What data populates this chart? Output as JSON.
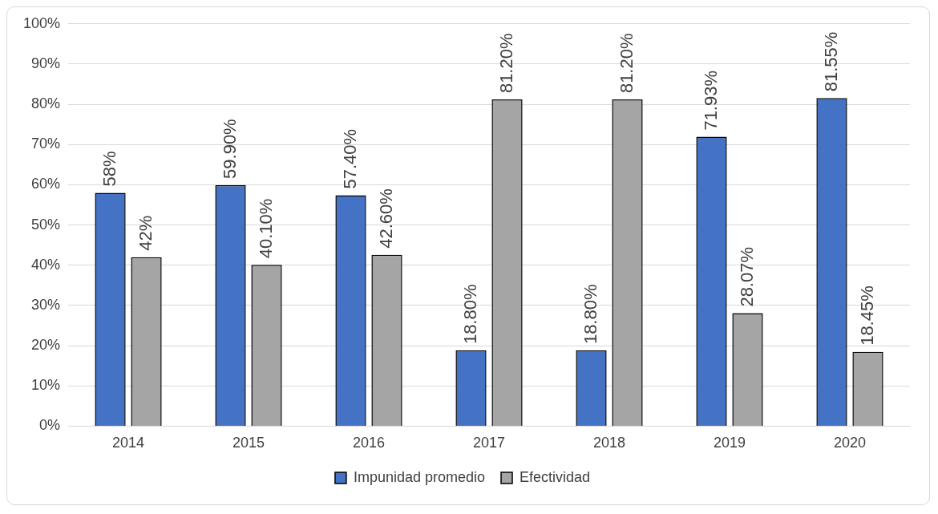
{
  "chart_data": {
    "type": "bar",
    "categories": [
      "2014",
      "2015",
      "2016",
      "2017",
      "2018",
      "2019",
      "2020"
    ],
    "series": [
      {
        "name": "Impunidad promedio",
        "color": "#4472c4",
        "values": [
          58,
          59.9,
          57.4,
          18.8,
          18.8,
          71.93,
          81.55
        ],
        "value_labels": [
          "58%",
          "59.90%",
          "57.40%",
          "18.80%",
          "18.80%",
          "71.93%",
          "81.55%"
        ]
      },
      {
        "name": "Efectividad",
        "color": "#a5a5a5",
        "values": [
          42,
          40.1,
          42.6,
          81.2,
          81.2,
          28.07,
          18.45
        ],
        "value_labels": [
          "42%",
          "40.10%",
          "42.60%",
          "81.20%",
          "81.20%",
          "28.07%",
          "18.45%"
        ]
      }
    ],
    "ylim": [
      0,
      100
    ],
    "yticks": [
      {
        "value": 0,
        "label": "0%"
      },
      {
        "value": 10,
        "label": "10%"
      },
      {
        "value": 20,
        "label": "20%"
      },
      {
        "value": 30,
        "label": "30%"
      },
      {
        "value": 40,
        "label": "40%"
      },
      {
        "value": 50,
        "label": "50%"
      },
      {
        "value": 60,
        "label": "60%"
      },
      {
        "value": 70,
        "label": "70%"
      },
      {
        "value": 80,
        "label": "80%"
      },
      {
        "value": 90,
        "label": "90%"
      },
      {
        "value": 100,
        "label": "100%"
      }
    ],
    "grid": "y",
    "legend": "bottom"
  }
}
